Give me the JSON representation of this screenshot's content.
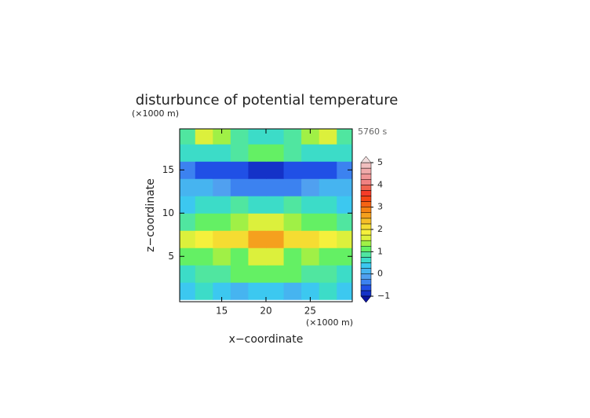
{
  "chart_data": {
    "type": "contour",
    "title": "disturbunce of potential temperature",
    "x_label": "x−coordinate",
    "y_label": "z−coordinate",
    "x_unit": "(×1000 m)",
    "y_unit": "(×1000 m)",
    "time_label": "5760 s",
    "xlim": [
      10.25,
      29.75
    ],
    "ylim": [
      -0.25,
      19.75
    ],
    "xticks": [
      15,
      20,
      25
    ],
    "yticks": [
      5,
      10,
      15
    ],
    "x": [
      11,
      13,
      15,
      17,
      19,
      21,
      23,
      25,
      27,
      29
    ],
    "y": [
      1,
      3,
      5,
      7,
      9,
      11,
      13,
      15,
      17,
      19
    ],
    "z": [
      [
        0.3,
        0.6,
        0.4,
        0.2,
        0.3,
        0.3,
        0.2,
        0.4,
        0.6,
        0.3
      ],
      [
        0.5,
        0.8,
        0.9,
        1.0,
        1.2,
        1.2,
        1.0,
        0.9,
        0.8,
        0.5
      ],
      [
        1.2,
        1.0,
        1.3,
        1.1,
        1.5,
        1.5,
        1.1,
        1.3,
        1.0,
        1.2
      ],
      [
        1.6,
        1.8,
        2.0,
        2.2,
        2.5,
        2.5,
        2.2,
        2.0,
        1.8,
        1.6
      ],
      [
        0.8,
        1.0,
        1.2,
        1.3,
        1.6,
        1.6,
        1.3,
        1.2,
        1.0,
        0.8
      ],
      [
        0.3,
        0.5,
        0.7,
        0.8,
        0.6,
        0.6,
        0.8,
        0.7,
        0.5,
        0.3
      ],
      [
        0.2,
        0.1,
        -0.1,
        -0.3,
        -0.5,
        -0.5,
        -0.3,
        -0.1,
        0.1,
        0.2
      ],
      [
        -0.5,
        -0.6,
        -0.6,
        -0.7,
        -0.8,
        -0.8,
        -0.7,
        -0.6,
        -0.6,
        -0.5
      ],
      [
        0.5,
        0.6,
        0.7,
        0.9,
        1.0,
        1.0,
        0.9,
        0.7,
        0.6,
        0.5
      ],
      [
        0.8,
        1.6,
        1.3,
        0.9,
        0.7,
        0.7,
        0.9,
        1.3,
        1.6,
        0.8
      ]
    ],
    "levels": [
      -1,
      -0.75,
      -0.5,
      -0.25,
      0,
      0.25,
      0.5,
      0.75,
      1,
      1.25,
      1.5,
      1.75,
      2,
      2.25,
      2.5,
      2.75,
      3,
      3.25,
      3.5,
      3.75,
      4,
      4.25,
      4.5,
      4.75,
      5
    ],
    "colors": [
      "#1432c8",
      "#2050e6",
      "#3c82f0",
      "#50a0f0",
      "#46b4f0",
      "#3cc8f0",
      "#3cdcc8",
      "#50e6a0",
      "#64f064",
      "#a0f046",
      "#dcf03c",
      "#f5f03c",
      "#f5dc32",
      "#f5be28",
      "#f5a01e",
      "#f58214",
      "#f56414",
      "#f54614",
      "#f53c28",
      "#f06450",
      "#f08282",
      "#f09696",
      "#f0aaaa",
      "#f0bebe"
    ],
    "under_color": "#0a14a0",
    "over_color": "#f0dcdc",
    "colorbar_ticks": [
      {
        "value": -1,
        "label": "−1"
      },
      0,
      1,
      2,
      3,
      4,
      5
    ]
  }
}
